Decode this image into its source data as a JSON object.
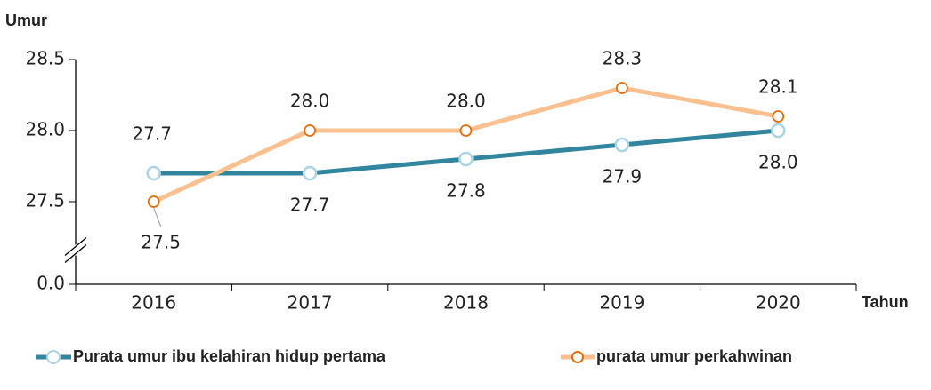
{
  "chart_data": {
    "type": "line",
    "y_axis_label": "Umur",
    "x_axis_label": "Tahun",
    "categories": [
      "2016",
      "2017",
      "2018",
      "2019",
      "2020"
    ],
    "series": [
      {
        "name": "Purata umur ibu kelahiran hidup pertama",
        "color": "#31859c",
        "marker_color": "#a9d4e4",
        "values": [
          27.7,
          27.7,
          27.8,
          27.9,
          28.0
        ],
        "value_labels": [
          "27.7",
          "27.7",
          "27.8",
          "27.9",
          "28.0"
        ]
      },
      {
        "name": "purata umur perkahwinan",
        "color": "#fac090",
        "marker_color": "#e46c0a",
        "values": [
          27.5,
          28.0,
          28.0,
          28.3,
          28.1
        ],
        "value_labels": [
          "27.5",
          "28.0",
          "28.0",
          "28.3",
          "28.1"
        ]
      }
    ],
    "ylim": [
      0,
      28.5
    ],
    "axis_break": [
      0,
      27.0
    ],
    "yticks": [
      {
        "value": 0,
        "label": "0.0"
      },
      27.5,
      {
        "value": 28.0,
        "label": "28.0"
      },
      28.5
    ],
    "legend": "bottom"
  }
}
